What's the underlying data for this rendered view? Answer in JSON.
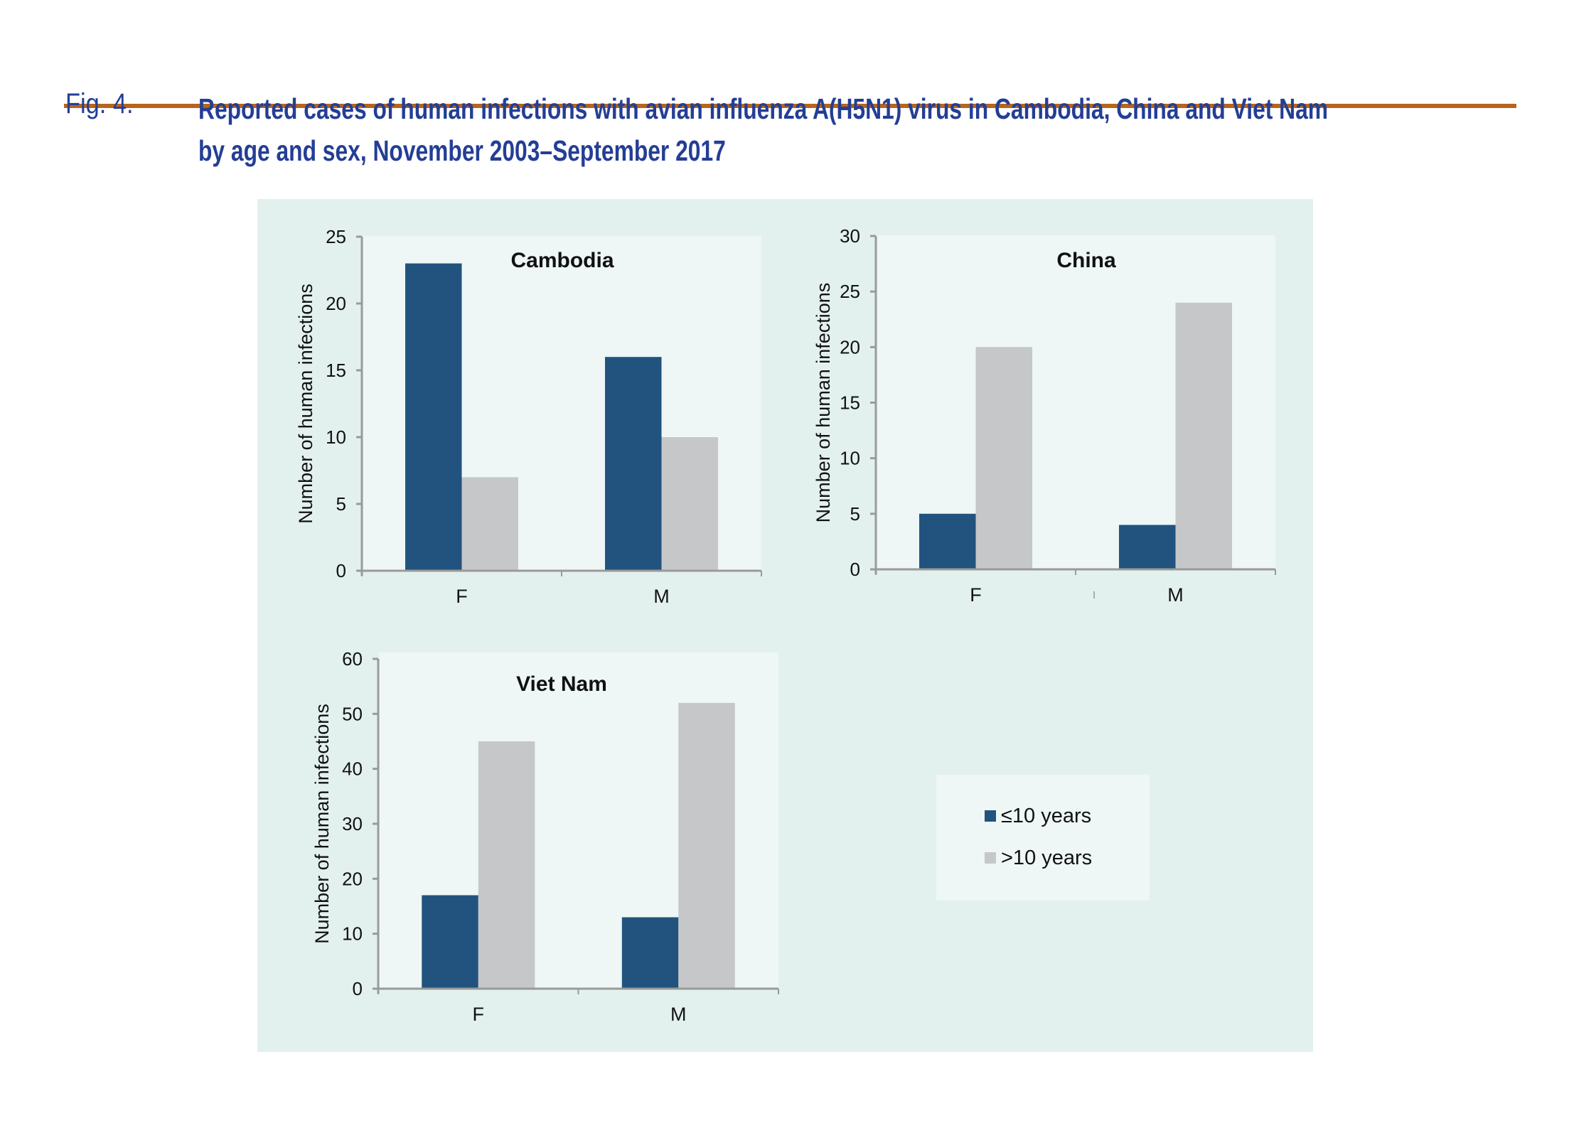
{
  "figure": {
    "label": "Fig. 4.",
    "title_line1": "Reported cases of human infections with avian influenza A(H5N1) virus in Cambodia, China and Viet Nam",
    "title_line2": "by age and sex, November 2003–September 2017"
  },
  "colors": {
    "rule": "#b8651b",
    "title": "#243e95",
    "panel_bg": "#e3f1ee",
    "plot_bg": "#eef7f6",
    "axis": "#9a9a9a",
    "series_le10": "#21537e",
    "series_gt10": "#c6c7c9"
  },
  "legend": {
    "items": [
      {
        "label": "≤10 years",
        "color": "#21537e"
      },
      {
        "label": ">10 years",
        "color": "#c6c7c9"
      }
    ]
  },
  "chart_data": [
    {
      "type": "bar",
      "title": "Cambodia",
      "xlabel": "",
      "ylabel": "Number of human infections",
      "categories": [
        "F",
        "M"
      ],
      "ylim": [
        0,
        25
      ],
      "yticks": [
        0,
        5,
        10,
        15,
        20,
        25
      ],
      "series": [
        {
          "name": "≤10 years",
          "values": [
            23,
            16
          ]
        },
        {
          "name": ">10 years",
          "values": [
            7,
            10
          ]
        }
      ],
      "grid": false,
      "legend": "shared"
    },
    {
      "type": "bar",
      "title": "China",
      "xlabel": "",
      "ylabel": "Number of human infections",
      "categories": [
        "F",
        "M"
      ],
      "ylim": [
        0,
        30
      ],
      "yticks": [
        0,
        5,
        10,
        15,
        20,
        25,
        30
      ],
      "series": [
        {
          "name": "≤10 years",
          "values": [
            5,
            4
          ]
        },
        {
          "name": ">10 years",
          "values": [
            20,
            24
          ]
        }
      ],
      "grid": false,
      "legend": "shared"
    },
    {
      "type": "bar",
      "title": "Viet Nam",
      "xlabel": "",
      "ylabel": "Number of human infections",
      "categories": [
        "F",
        "M"
      ],
      "ylim": [
        0,
        60
      ],
      "yticks": [
        0,
        10,
        20,
        30,
        40,
        50,
        60
      ],
      "series": [
        {
          "name": "≤10 years",
          "values": [
            17,
            13
          ]
        },
        {
          "name": ">10 years",
          "values": [
            45,
            52
          ]
        }
      ],
      "grid": false,
      "legend": "bottom-right"
    }
  ]
}
